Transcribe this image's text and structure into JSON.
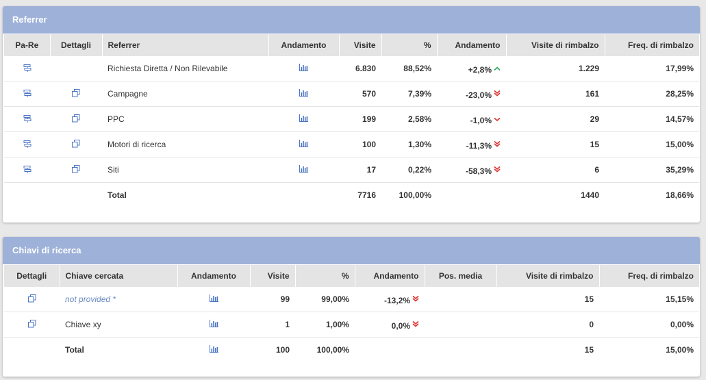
{
  "colors": {
    "header_bg": "#9db1d9",
    "icon_blue": "#4a74c4",
    "up_green": "#22aa55",
    "down_red": "#e03030"
  },
  "icons": {
    "signpost": "signpost-icon",
    "details": "details-icon",
    "chart": "bar-chart-icon",
    "up": "arrow-up-icon",
    "down": "double-chevron-down-icon",
    "down_single": "chevron-down-icon"
  },
  "referrer": {
    "title": "Referrer",
    "headers": [
      "Pa-Re",
      "Dettagli",
      "Referrer",
      "Andamento",
      "Visite",
      "%",
      "Andamento",
      "Visite di rimbalzo",
      "Freq. di rimbalzo"
    ],
    "rows": [
      {
        "name": "Richiesta Diretta / Non Rilevabile",
        "details": false,
        "visits": "6.830",
        "pct": "88,52%",
        "trend": "+2,8%",
        "dir": "up",
        "bounce": "1.229",
        "freq": "17,99%"
      },
      {
        "name": "Campagne",
        "details": true,
        "visits": "570",
        "pct": "7,39%",
        "trend": "-23,0%",
        "dir": "down",
        "bounce": "161",
        "freq": "28,25%"
      },
      {
        "name": "PPC",
        "details": true,
        "visits": "199",
        "pct": "2,58%",
        "trend": "-1,0%",
        "dir": "down_single",
        "bounce": "29",
        "freq": "14,57%"
      },
      {
        "name": "Motori di ricerca",
        "details": true,
        "visits": "100",
        "pct": "1,30%",
        "trend": "-11,3%",
        "dir": "down",
        "bounce": "15",
        "freq": "15,00%"
      },
      {
        "name": "Siti",
        "details": true,
        "visits": "17",
        "pct": "0,22%",
        "trend": "-58,3%",
        "dir": "down",
        "bounce": "6",
        "freq": "35,29%"
      }
    ],
    "total": {
      "label": "Total",
      "visits": "7716",
      "pct": "100,00%",
      "bounce": "1440",
      "freq": "18,66%"
    }
  },
  "keywords": {
    "title": "Chiavi di ricerca",
    "headers": [
      "Dettagli",
      "Chiave cercata",
      "Andamento",
      "Visite",
      "%",
      "Andamento",
      "Pos. media",
      "Visite di rimbalzo",
      "Freq. di rimbalzo"
    ],
    "rows": [
      {
        "name": "not provided *",
        "link": true,
        "visits": "99",
        "pct": "99,00%",
        "trend": "-13,2%",
        "dir": "down",
        "pos": "",
        "bounce": "15",
        "freq": "15,15%"
      },
      {
        "name": "Chiave xy",
        "link": false,
        "visits": "1",
        "pct": "1,00%",
        "trend": "0,0%",
        "dir": "down",
        "pos": "",
        "bounce": "0",
        "freq": "0,00%"
      }
    ],
    "total": {
      "label": "Total",
      "visits": "100",
      "pct": "100,00%",
      "bounce": "15",
      "freq": "15,00%"
    }
  }
}
